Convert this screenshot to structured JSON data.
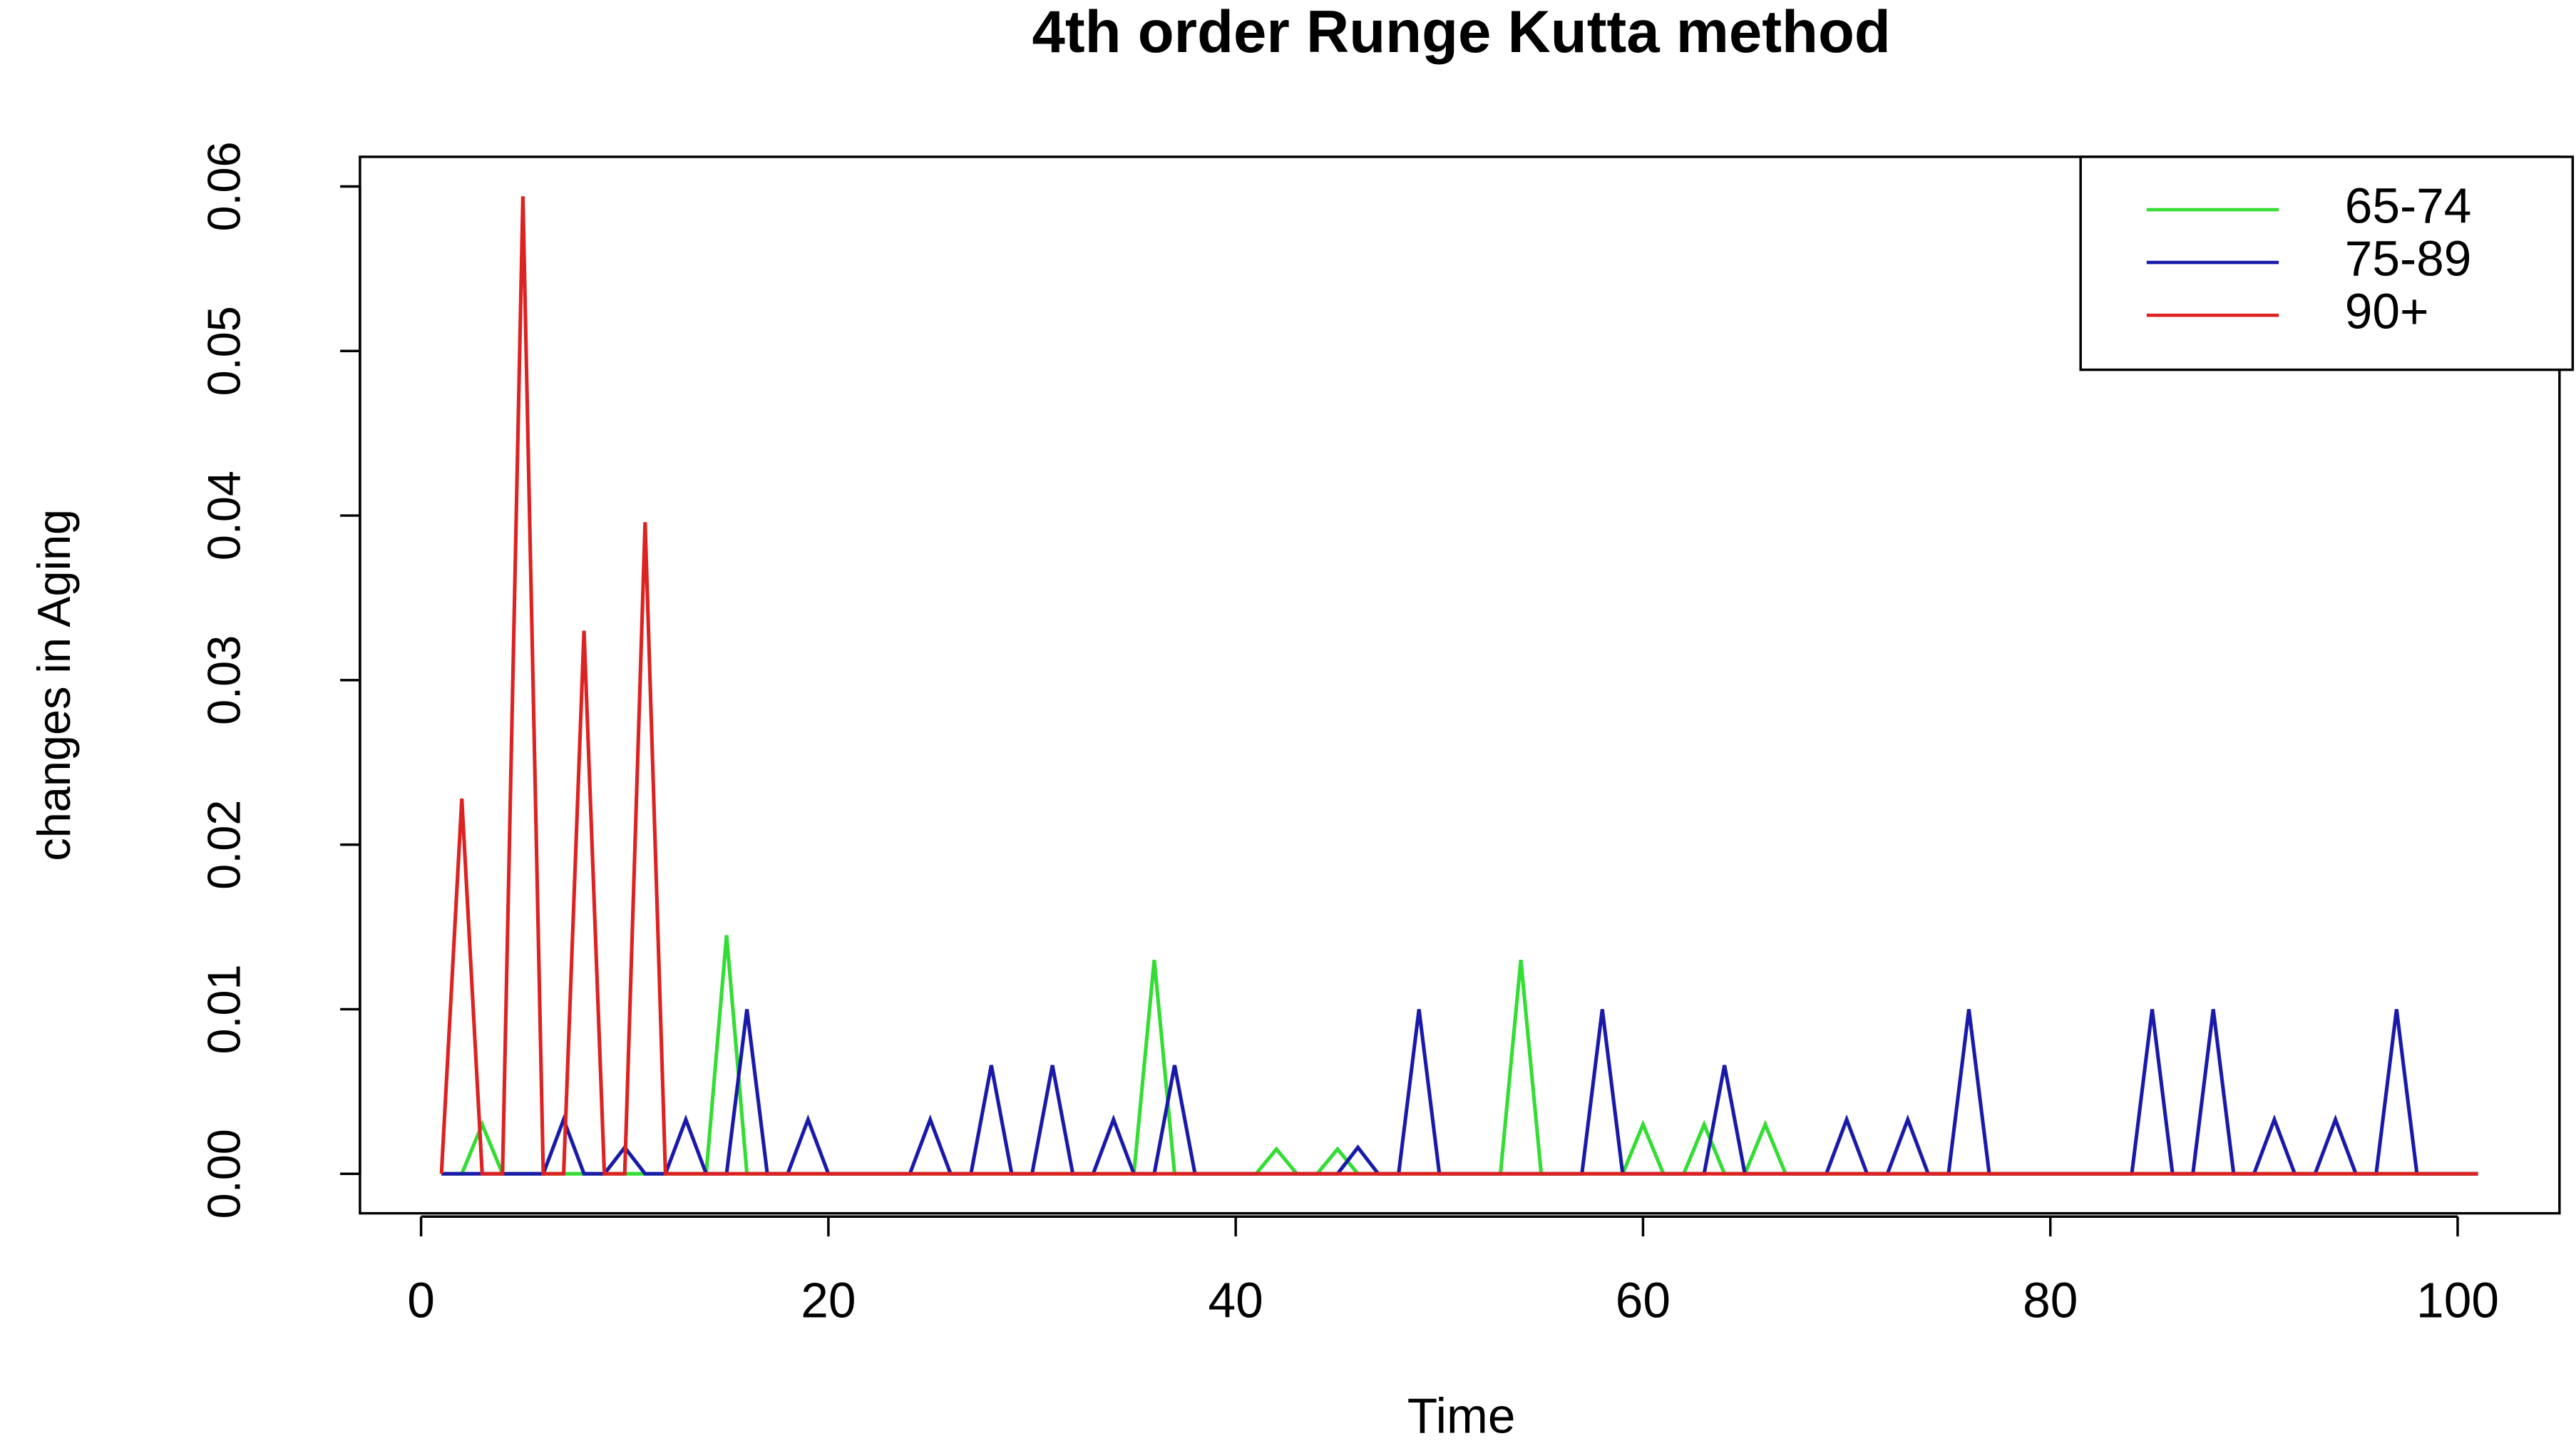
{
  "chart_data": {
    "type": "line",
    "title": "4th order Runge Kutta method",
    "x_label": "Time",
    "y_label": "changes in Aging",
    "x": [
      1,
      2,
      3,
      4,
      5,
      6,
      7,
      8,
      9,
      10,
      11,
      12,
      13,
      14,
      15,
      16,
      17,
      18,
      19,
      20,
      21,
      22,
      23,
      24,
      25,
      26,
      27,
      28,
      29,
      30,
      31,
      32,
      33,
      34,
      35,
      36,
      37,
      38,
      39,
      40,
      41,
      42,
      43,
      44,
      45,
      46,
      47,
      48,
      49,
      50,
      51,
      52,
      53,
      54,
      55,
      56,
      57,
      58,
      59,
      60,
      61,
      62,
      63,
      64,
      65,
      66,
      67,
      68,
      69,
      70,
      71,
      72,
      73,
      74,
      75,
      76,
      77,
      78,
      79,
      80,
      81,
      82,
      83,
      84,
      85,
      86,
      87,
      88,
      89,
      90,
      91,
      92,
      93,
      94,
      95,
      96,
      97,
      98,
      99,
      100,
      101
    ],
    "series": [
      {
        "name": "65-74",
        "color": "#33dd33",
        "values": [
          0,
          0,
          0.003,
          0,
          0,
          0,
          0,
          0,
          0,
          0,
          0,
          0,
          0,
          0,
          0.0145,
          0,
          0,
          0,
          0,
          0,
          0,
          0,
          0,
          0,
          0,
          0,
          0,
          0,
          0,
          0,
          0,
          0,
          0,
          0,
          0,
          0.013,
          0,
          0,
          0,
          0,
          0,
          0.0015,
          0,
          0,
          0.0015,
          0,
          0,
          0,
          0,
          0,
          0,
          0,
          0,
          0.013,
          0,
          0,
          0,
          0,
          0,
          0.003,
          0,
          0,
          0.003,
          0,
          0,
          0.003,
          0,
          0,
          0,
          0,
          0,
          0,
          0,
          0,
          0,
          0,
          0,
          0,
          0,
          0,
          0,
          0,
          0,
          0,
          0,
          0,
          0,
          0,
          0,
          0,
          0,
          0,
          0,
          0,
          0,
          0,
          0,
          0,
          0,
          0,
          0
        ]
      },
      {
        "name": "75-89",
        "color": "#1a1aaa",
        "values": [
          0,
          0,
          0,
          0,
          0,
          0,
          0.0033,
          0,
          0,
          0.0016,
          0,
          0,
          0.0033,
          0,
          0,
          0.01,
          0,
          0,
          0.0033,
          0,
          0,
          0,
          0,
          0,
          0.0033,
          0,
          0,
          0.0066,
          0,
          0,
          0.0066,
          0,
          0,
          0.0033,
          0,
          0,
          0.0066,
          0,
          0,
          0,
          0,
          0,
          0,
          0,
          0,
          0.0016,
          0,
          0,
          0.01,
          0,
          0,
          0,
          0,
          0,
          0,
          0,
          0,
          0.01,
          0,
          0,
          0,
          0,
          0,
          0.0066,
          0,
          0,
          0,
          0,
          0,
          0.0033,
          0,
          0,
          0.0033,
          0,
          0,
          0.01,
          0,
          0,
          0,
          0,
          0,
          0,
          0,
          0,
          0.01,
          0,
          0,
          0.01,
          0,
          0,
          0.0033,
          0,
          0,
          0.0033,
          0,
          0,
          0.01,
          0,
          0,
          0,
          0
        ]
      },
      {
        "name": "90+",
        "color": "#dd2222",
        "values": [
          0,
          0.0228,
          0,
          0,
          0.0594,
          0,
          0,
          0.033,
          0,
          0,
          0.0396,
          0,
          0,
          0,
          0,
          0,
          0,
          0,
          0,
          0,
          0,
          0,
          0,
          0,
          0,
          0,
          0,
          0,
          0,
          0,
          0,
          0,
          0,
          0,
          0,
          0,
          0,
          0,
          0,
          0,
          0,
          0,
          0,
          0,
          0,
          0,
          0,
          0,
          0,
          0,
          0,
          0,
          0,
          0,
          0,
          0,
          0,
          0,
          0,
          0,
          0,
          0,
          0,
          0,
          0,
          0,
          0,
          0,
          0,
          0,
          0,
          0,
          0,
          0,
          0,
          0,
          0,
          0,
          0,
          0,
          0,
          0,
          0,
          0,
          0,
          0,
          0,
          0,
          0,
          0,
          0,
          0,
          0,
          0,
          0,
          0,
          0,
          0,
          0,
          0,
          0
        ]
      }
    ],
    "xlim": [
      -3,
      105
    ],
    "ylim": [
      -0.0024,
      0.0618
    ],
    "xticks": [
      0,
      20,
      40,
      60,
      80,
      100
    ],
    "yticks": [
      {
        "value": 0,
        "label": "0.00"
      },
      0.01,
      0.02,
      0.03,
      0.04,
      0.05,
      0.06
    ],
    "legend": "topright"
  }
}
